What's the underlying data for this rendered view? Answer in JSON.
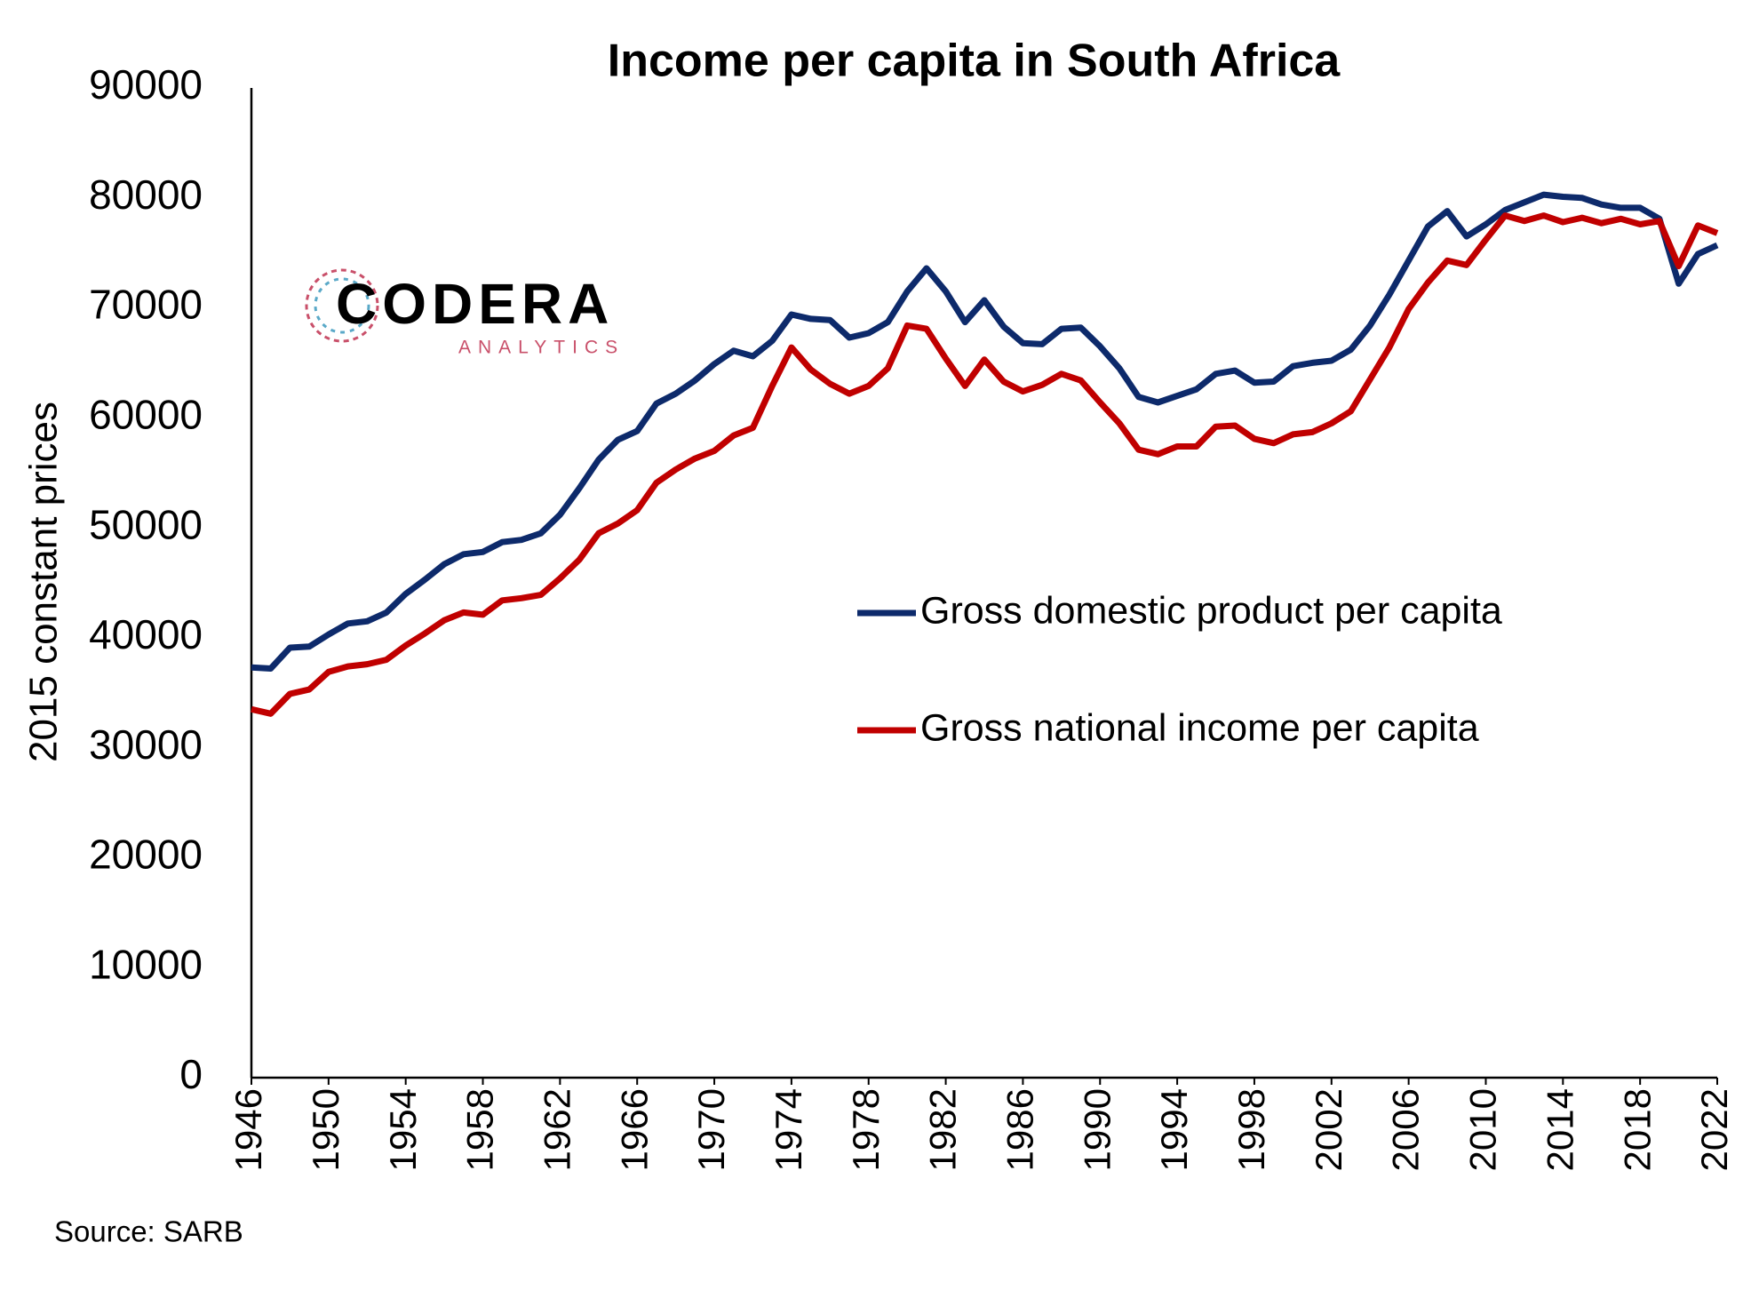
{
  "chart_data": {
    "type": "line",
    "title": "Income per capita in South Africa",
    "y_label": "2015 constant prices",
    "source": "Source: SARB",
    "logo": {
      "name": "CODERA",
      "tagline": "ANALYTICS"
    },
    "x": [
      1946,
      1947,
      1948,
      1949,
      1950,
      1951,
      1952,
      1953,
      1954,
      1955,
      1956,
      1957,
      1958,
      1959,
      1960,
      1961,
      1962,
      1963,
      1964,
      1965,
      1966,
      1967,
      1968,
      1969,
      1970,
      1971,
      1972,
      1973,
      1974,
      1975,
      1976,
      1977,
      1978,
      1979,
      1980,
      1981,
      1982,
      1983,
      1984,
      1985,
      1986,
      1987,
      1988,
      1989,
      1990,
      1991,
      1992,
      1993,
      1994,
      1995,
      1996,
      1997,
      1998,
      1999,
      2000,
      2001,
      2002,
      2003,
      2004,
      2005,
      2006,
      2007,
      2008,
      2009,
      2010,
      2011,
      2012,
      2013,
      2014,
      2015,
      2016,
      2017,
      2018,
      2019,
      2020,
      2021,
      2022
    ],
    "xlim": [
      1946,
      2022
    ],
    "xticks": [
      1946,
      1950,
      1954,
      1958,
      1962,
      1966,
      1970,
      1974,
      1978,
      1982,
      1986,
      1990,
      1994,
      1998,
      2002,
      2006,
      2010,
      2014,
      2018,
      2022
    ],
    "ylim": [
      0,
      90000
    ],
    "yticks": [
      0,
      10000,
      20000,
      30000,
      40000,
      50000,
      60000,
      70000,
      80000,
      90000
    ],
    "grid": false,
    "series": [
      {
        "name": "Gross domestic product per capita",
        "color": "#0d2a6b",
        "values": [
          37300,
          37200,
          39100,
          39200,
          40300,
          41300,
          41500,
          42300,
          44000,
          45300,
          46700,
          47600,
          47800,
          48700,
          48900,
          49500,
          51200,
          53600,
          56200,
          58000,
          58800,
          61300,
          62200,
          63400,
          64900,
          66100,
          65600,
          67000,
          69400,
          69000,
          68900,
          67300,
          67700,
          68700,
          71500,
          73600,
          71500,
          68700,
          70700,
          68300,
          66800,
          66700,
          68100,
          68200,
          66500,
          64500,
          61900,
          61400,
          62000,
          62600,
          64000,
          64300,
          63200,
          63300,
          64700,
          65000,
          65200,
          66200,
          68400,
          71200,
          74300,
          77400,
          78800,
          76500,
          77600,
          78900,
          79600,
          80300,
          80100,
          80000,
          79400,
          79100,
          79100,
          78100,
          72200,
          74900,
          75700
        ]
      },
      {
        "name": "Gross national income per capita",
        "color": "#c00000",
        "values": [
          33500,
          33100,
          34900,
          35300,
          36900,
          37400,
          37600,
          38000,
          39300,
          40400,
          41600,
          42300,
          42100,
          43400,
          43600,
          43900,
          45400,
          47100,
          49500,
          50400,
          51600,
          54100,
          55300,
          56300,
          57000,
          58400,
          59100,
          62900,
          66400,
          64400,
          63100,
          62200,
          62900,
          64500,
          68400,
          68100,
          65400,
          62900,
          65300,
          63300,
          62400,
          63000,
          64000,
          63400,
          61400,
          59500,
          57100,
          56700,
          57400,
          57400,
          59200,
          59300,
          58100,
          57700,
          58500,
          58700,
          59500,
          60600,
          63500,
          66400,
          69900,
          72300,
          74300,
          73900,
          76200,
          78400,
          77900,
          78400,
          77800,
          78200,
          77700,
          78100,
          77600,
          77900,
          73800,
          77500,
          76800
        ]
      }
    ]
  }
}
